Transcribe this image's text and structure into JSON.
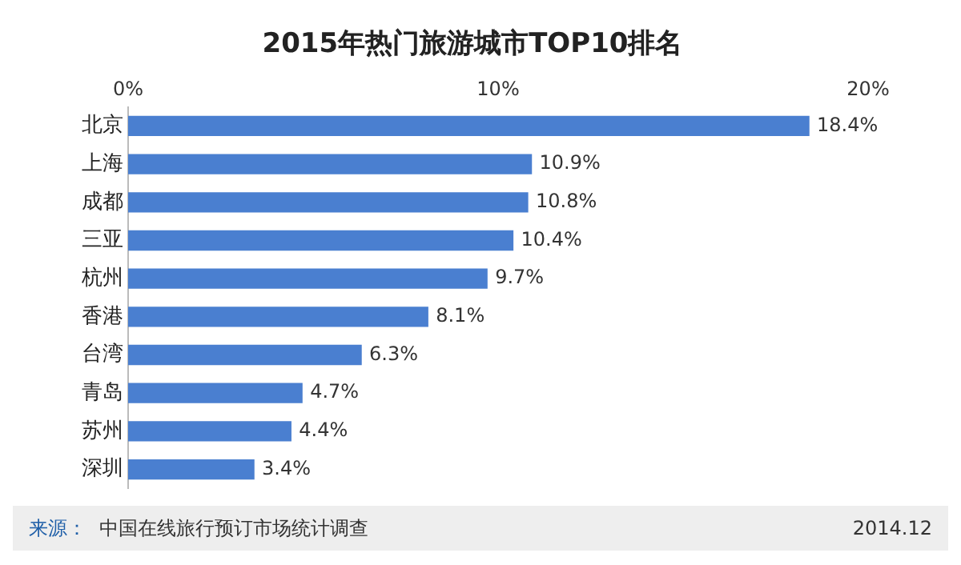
{
  "chart_data": {
    "type": "bar",
    "orientation": "horizontal",
    "title": "2015年热门旅游城市TOP10排名",
    "categories": [
      "北京",
      "上海",
      "成都",
      "三亚",
      "杭州",
      "香港",
      "台湾",
      "青岛",
      "苏州",
      "深圳"
    ],
    "values": [
      18.4,
      10.9,
      10.8,
      10.4,
      9.7,
      8.1,
      6.3,
      4.7,
      4.4,
      3.4
    ],
    "value_labels": [
      "18.4%",
      "10.9%",
      "10.8%",
      "10.4%",
      "9.7%",
      "8.1%",
      "6.3%",
      "4.7%",
      "4.4%",
      "3.4%"
    ],
    "color": "#4a7fd0",
    "xlim": [
      0,
      20
    ],
    "xticks": [
      {
        "value": 0,
        "label": "0%"
      },
      {
        "value": 10,
        "label": "10%"
      },
      {
        "value": 20,
        "label": "20%"
      }
    ],
    "grid": false,
    "legend": false,
    "annotations": [
      "来源：",
      "中国在线旅行预订市场统计调查",
      "2014.12"
    ]
  }
}
